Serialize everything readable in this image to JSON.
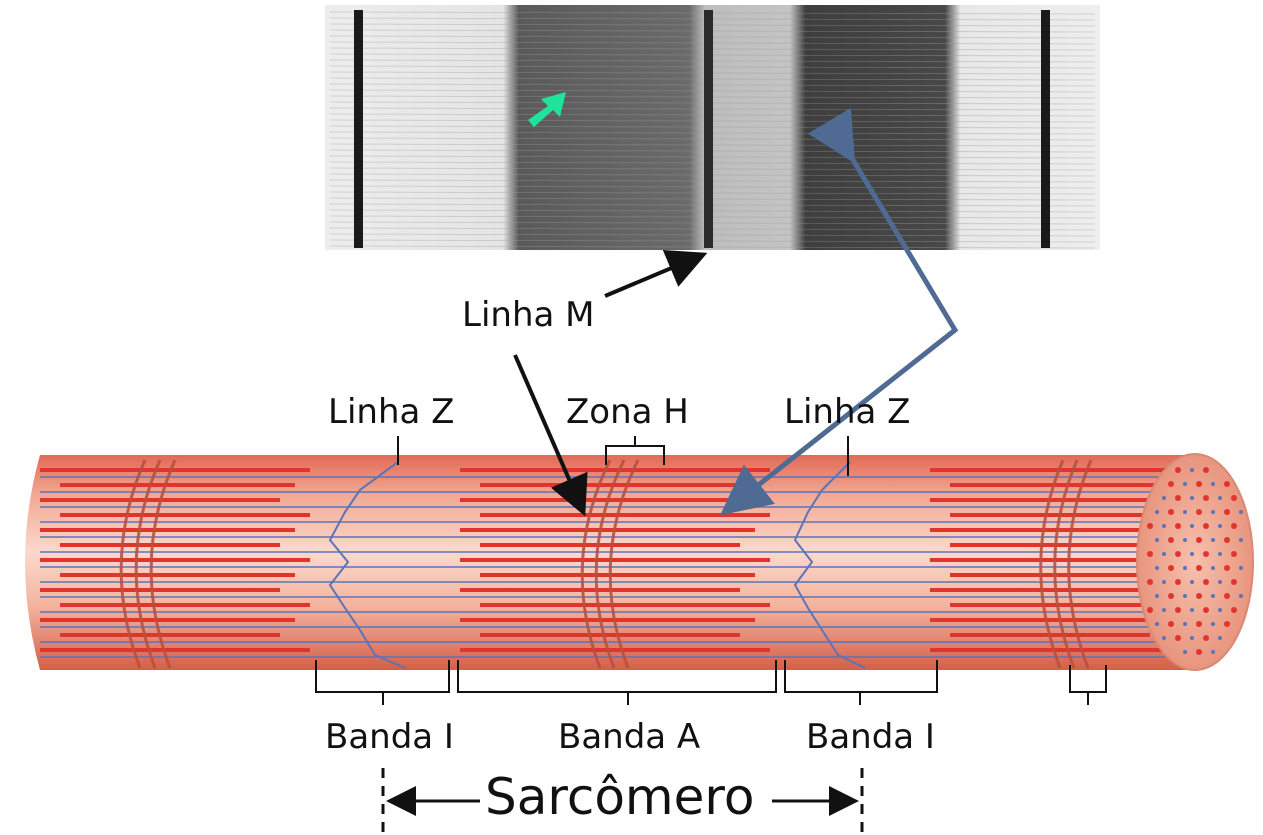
{
  "labels": {
    "linha_m": "Linha M",
    "linha_z_left": "Linha Z",
    "zona_h": "Zona H",
    "linha_z_right": "Linha Z",
    "banda_i_left": "Banda I",
    "banda_a": "Banda A",
    "banda_i_right": "Banda I",
    "sarcomero": "Sarcômero"
  },
  "colors": {
    "thick_filament": "#e0342e",
    "thin_filament": "#5b74b8",
    "fiber_body": "#f4b8a4",
    "fiber_shadow": "#d9705d",
    "blue_arrow": "#4f6b93",
    "green_arrow": "#1fe39a",
    "micrograph_bg": "#e8e8e8",
    "micrograph_dark": "#3a3a3a"
  }
}
